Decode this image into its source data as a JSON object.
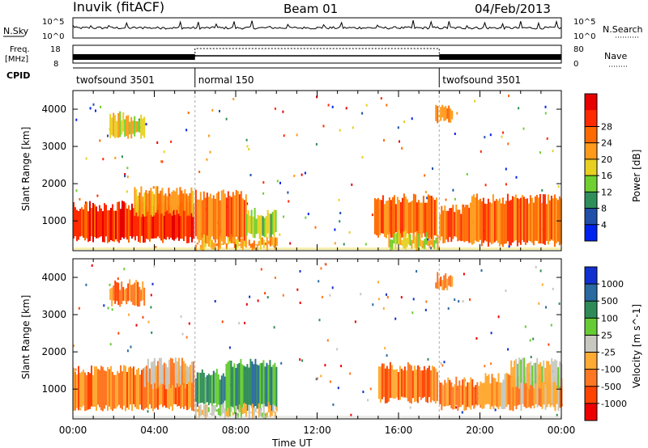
{
  "header": {
    "station": "Inuvik (fitACF)",
    "beam": "Beam 01",
    "date": "04/Feb/2013"
  },
  "top_panels": {
    "nsky_label": "N.Sky",
    "nsky_ticks": [
      "10^5",
      "10^0"
    ],
    "nsearch_label": "N.Search",
    "nsearch_ticks": [
      "10^5",
      "10^0"
    ],
    "freq_label_1": "Freq.",
    "freq_label_2": "[MHz]",
    "freq_ticks": [
      "18",
      "8"
    ],
    "nave_label": "Nave",
    "nave_ticks": [
      "80",
      "0"
    ],
    "cpid_label": "CPID",
    "cpid_segments": [
      {
        "label": "twofsound 3501",
        "start_hour": 0,
        "end_hour": 6
      },
      {
        "label": "normal 150",
        "start_hour": 6,
        "end_hour": 18
      },
      {
        "label": "twofsound 3501",
        "start_hour": 18,
        "end_hour": 24
      }
    ]
  },
  "colors": {
    "power": [
      "#0022ee",
      "#1f4fa8",
      "#2f8f5a",
      "#6fd030",
      "#e8d020",
      "#ff9a1a",
      "#ff6a00",
      "#ff2a00",
      "#e60000"
    ],
    "velocity": [
      "#ee0000",
      "#ff4400",
      "#ff7722",
      "#ffaa33",
      "#c8c8c0",
      "#66cc33",
      "#2e8b57",
      "#2a6aa0",
      "#1030d0"
    ]
  },
  "chart_data": [
    {
      "type": "heatmap",
      "name": "power",
      "ylabel": "Slant Range [km]",
      "xlabel": "",
      "xlim": [
        0,
        24
      ],
      "ylim": [
        200,
        4500
      ],
      "yticks": [
        "1000",
        "2000",
        "3000",
        "4000"
      ],
      "xticks": [],
      "colorbar_label": "Power [dB]",
      "colorbar_ticks": [
        "4",
        "8",
        "12",
        "16",
        "20",
        "24",
        "28"
      ],
      "regions": [
        {
          "t0": 0.0,
          "t1": 5.9,
          "r0": 500,
          "r1": 1400,
          "level": 7
        },
        {
          "t0": 3.0,
          "t1": 5.9,
          "r0": 1200,
          "r1": 1800,
          "level": 5
        },
        {
          "t0": 6.0,
          "t1": 8.5,
          "r0": 500,
          "r1": 1700,
          "level": 6
        },
        {
          "t0": 6.0,
          "t1": 10.0,
          "r0": 300,
          "r1": 500,
          "level": 5
        },
        {
          "t0": 8.5,
          "t1": 10.0,
          "r0": 600,
          "r1": 1200,
          "level": 3
        },
        {
          "t0": 14.8,
          "t1": 17.9,
          "r0": 600,
          "r1": 1600,
          "level": 6
        },
        {
          "t0": 15.5,
          "t1": 17.9,
          "r0": 300,
          "r1": 600,
          "level": 4
        },
        {
          "t0": 18.0,
          "t1": 19.5,
          "r0": 500,
          "r1": 1300,
          "level": 6
        },
        {
          "t0": 19.5,
          "t1": 24.0,
          "r0": 400,
          "r1": 1600,
          "level": 6
        },
        {
          "t0": 1.8,
          "t1": 3.5,
          "r0": 3300,
          "r1": 3800,
          "level": 4
        },
        {
          "t0": 17.8,
          "t1": 18.6,
          "r0": 3700,
          "r1": 4000,
          "level": 5
        }
      ]
    },
    {
      "type": "heatmap",
      "name": "velocity",
      "ylabel": "Slant Range [km]",
      "xlabel": "Time UT",
      "xlim": [
        0,
        24
      ],
      "ylim": [
        200,
        4500
      ],
      "yticks": [
        "1000",
        "2000",
        "3000",
        "4000"
      ],
      "xticks": [
        "00:00",
        "04:00",
        "08:00",
        "12:00",
        "16:00",
        "20:00",
        "00:00"
      ],
      "colorbar_label": "Velocity [m s^-1]",
      "colorbar_ticks": [
        "1000",
        "500",
        "100",
        "25",
        "-25",
        "-100",
        "-500",
        "-1000"
      ],
      "regions": [
        {
          "t0": 0.0,
          "t1": 5.9,
          "r0": 500,
          "r1": 1500,
          "level": 2
        },
        {
          "t0": 3.5,
          "t1": 5.9,
          "r0": 1100,
          "r1": 1700,
          "level": 3
        },
        {
          "t0": 6.0,
          "t1": 7.5,
          "r0": 600,
          "r1": 1400,
          "level": 6
        },
        {
          "t0": 7.5,
          "t1": 10.0,
          "r0": 500,
          "r1": 1700,
          "level": 6
        },
        {
          "t0": 6.0,
          "t1": 10.0,
          "r0": 300,
          "r1": 500,
          "level": 4
        },
        {
          "t0": 15.0,
          "t1": 17.9,
          "r0": 700,
          "r1": 1600,
          "level": 2
        },
        {
          "t0": 18.0,
          "t1": 20.0,
          "r0": 500,
          "r1": 1200,
          "level": 2
        },
        {
          "t0": 20.0,
          "t1": 24.0,
          "r0": 500,
          "r1": 1300,
          "level": 3
        },
        {
          "t0": 21.5,
          "t1": 24.0,
          "r0": 1100,
          "r1": 1700,
          "level": 4
        },
        {
          "t0": 1.8,
          "t1": 3.5,
          "r0": 3300,
          "r1": 3800,
          "level": 2
        },
        {
          "t0": 17.8,
          "t1": 18.6,
          "r0": 3700,
          "r1": 4000,
          "level": 2
        }
      ]
    }
  ]
}
